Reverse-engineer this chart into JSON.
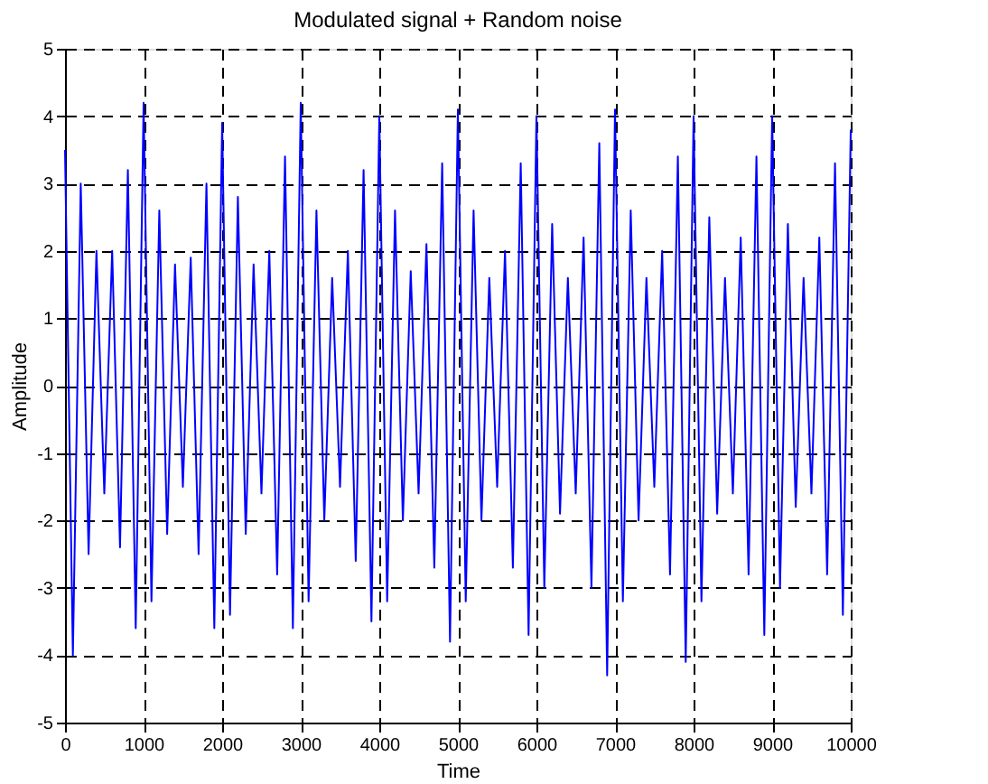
{
  "chart_data": {
    "type": "line",
    "title": "Modulated signal + Random noise",
    "xlabel": "Time",
    "ylabel": "Amplitude",
    "x": [
      0,
      100,
      200,
      300,
      400,
      500,
      600,
      700,
      800,
      900,
      1000,
      1100,
      1200,
      1300,
      1400,
      1500,
      1600,
      1700,
      1800,
      1900,
      2000,
      2100,
      2200,
      2300,
      2400,
      2500,
      2600,
      2700,
      2800,
      2900,
      3000,
      3100,
      3200,
      3300,
      3400,
      3500,
      3600,
      3700,
      3800,
      3900,
      4000,
      4100,
      4200,
      4300,
      4400,
      4500,
      4600,
      4700,
      4800,
      4900,
      5000,
      5100,
      5200,
      5300,
      5400,
      5500,
      5600,
      5700,
      5800,
      5900,
      6000,
      6100,
      6200,
      6300,
      6400,
      6500,
      6600,
      6700,
      6800,
      6900,
      7000,
      7100,
      7200,
      7300,
      7400,
      7500,
      7600,
      7700,
      7800,
      7900,
      8000,
      8100,
      8200,
      8300,
      8400,
      8500,
      8600,
      8700,
      8800,
      8900,
      9000,
      9100,
      9200,
      9300,
      9400,
      9500,
      9600,
      9700,
      9800,
      9900,
      10000
    ],
    "series": [
      {
        "color": "#0000ff",
        "values": [
          3.5,
          -4.0,
          3.0,
          -2.5,
          2.0,
          -1.6,
          2.0,
          -2.4,
          3.2,
          -3.6,
          4.2,
          -3.2,
          2.6,
          -2.2,
          1.8,
          -1.5,
          1.9,
          -2.5,
          3.0,
          -3.6,
          3.9,
          -3.4,
          2.8,
          -2.2,
          1.8,
          -1.6,
          2.0,
          -2.8,
          3.4,
          -3.6,
          4.2,
          -3.2,
          2.6,
          -2.0,
          1.6,
          -1.5,
          2.0,
          -2.6,
          3.2,
          -3.5,
          4.0,
          -3.2,
          2.6,
          -2.0,
          1.7,
          -1.6,
          2.1,
          -2.7,
          3.3,
          -3.8,
          4.1,
          -3.2,
          2.6,
          -2.0,
          1.6,
          -1.5,
          2.0,
          -2.7,
          3.3,
          -3.7,
          4.0,
          -3.0,
          2.4,
          -1.9,
          1.6,
          -1.6,
          2.2,
          -3.0,
          3.6,
          -4.3,
          4.1,
          -3.2,
          2.6,
          -2.0,
          1.6,
          -1.5,
          2.0,
          -2.8,
          3.4,
          -4.1,
          4.0,
          -3.2,
          2.5,
          -1.9,
          1.6,
          -1.6,
          2.2,
          -2.8,
          3.4,
          -3.7,
          4.0,
          -3.0,
          2.4,
          -1.8,
          1.6,
          -1.6,
          2.2,
          -2.8,
          3.3,
          -3.4,
          3.8
        ]
      }
    ],
    "xlim": [
      0,
      10000
    ],
    "xticks": [
      0,
      1000,
      2000,
      3000,
      4000,
      5000,
      6000,
      7000,
      8000,
      9000,
      10000
    ],
    "ylim": [
      -5,
      5
    ],
    "yticks": [
      -5,
      -4,
      -3,
      -2,
      -1,
      0,
      1,
      2,
      3,
      4,
      5
    ],
    "grid": true,
    "line_style": "solid",
    "marker": "none"
  }
}
